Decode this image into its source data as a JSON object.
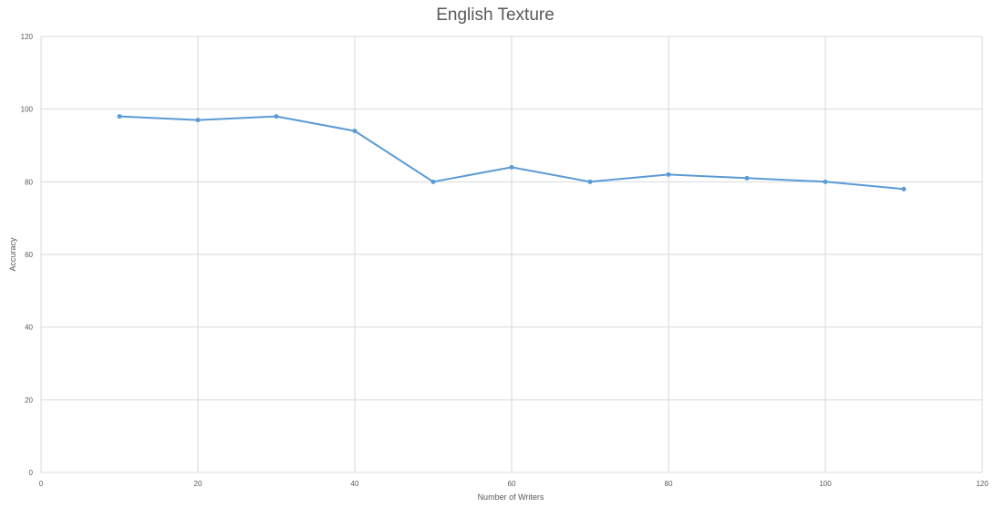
{
  "chart_data": {
    "type": "line",
    "title": "English Texture",
    "xlabel": "Number of Writers",
    "ylabel": "Accuracy",
    "xlim": [
      0,
      120
    ],
    "ylim": [
      0,
      120
    ],
    "x_ticks": [
      0,
      20,
      40,
      60,
      80,
      100,
      120
    ],
    "y_ticks": [
      0,
      20,
      40,
      60,
      80,
      100,
      120
    ],
    "grid": true,
    "legend": "none",
    "series": [
      {
        "x": [
          10,
          20,
          30,
          40,
          50,
          60,
          70,
          80,
          90,
          100,
          110
        ],
        "values": [
          98,
          97,
          98,
          94,
          80,
          84,
          80,
          82,
          81,
          80,
          78
        ],
        "color": "#5b9bd5"
      }
    ]
  }
}
